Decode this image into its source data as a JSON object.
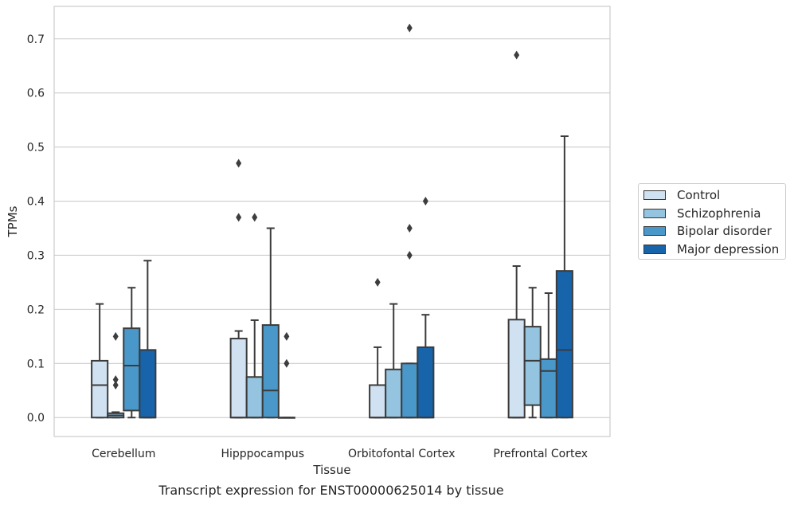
{
  "chart_data": {
    "type": "box",
    "xlabel": "Tissue",
    "ylabel": "TPMs",
    "caption": "Transcript expression for ENST00000625014 by tissue",
    "ylim": [
      -0.035,
      0.76
    ],
    "yticks": [
      0.0,
      0.1,
      0.2,
      0.3,
      0.4,
      0.5,
      0.6,
      0.7
    ],
    "ytick_labels": [
      "0.0",
      "0.1",
      "0.2",
      "0.3",
      "0.4",
      "0.5",
      "0.6",
      "0.7"
    ],
    "grid": "horizontal",
    "legend_position": "right",
    "categories": [
      "Cerebellum",
      "Hipppocampus",
      "Orbitofontal Cortex",
      "Prefrontal Cortex"
    ],
    "series": [
      {
        "name": "Control",
        "color": "#d0e1f2",
        "boxes": [
          {
            "whislo": 0.0,
            "q1": 0.0,
            "med": 0.06,
            "q3": 0.105,
            "whishi": 0.21,
            "fliers": []
          },
          {
            "whislo": 0.0,
            "q1": 0.0,
            "med": 0.0,
            "q3": 0.146,
            "whishi": 0.16,
            "fliers": [
              0.37,
              0.47
            ]
          },
          {
            "whislo": 0.0,
            "q1": 0.0,
            "med": 0.0,
            "q3": 0.06,
            "whishi": 0.13,
            "fliers": [
              0.25
            ]
          },
          {
            "whislo": 0.0,
            "q1": 0.0,
            "med": 0.0,
            "q3": 0.181,
            "whishi": 0.28,
            "fliers": [
              0.67
            ]
          }
        ]
      },
      {
        "name": "Schizophrenia",
        "color": "#94c4df",
        "boxes": [
          {
            "whislo": 0.0,
            "q1": 0.0,
            "med": 0.004,
            "q3": 0.008,
            "whishi": 0.01,
            "fliers": [
              0.06,
              0.07,
              0.15
            ]
          },
          {
            "whislo": 0.0,
            "q1": 0.0,
            "med": 0.0,
            "q3": 0.075,
            "whishi": 0.18,
            "fliers": [
              0.37
            ]
          },
          {
            "whislo": 0.0,
            "q1": 0.0,
            "med": 0.0,
            "q3": 0.089,
            "whishi": 0.21,
            "fliers": []
          },
          {
            "whislo": 0.0,
            "q1": 0.023,
            "med": 0.105,
            "q3": 0.168,
            "whishi": 0.24,
            "fliers": []
          }
        ]
      },
      {
        "name": "Bipolar disorder",
        "color": "#4a98c9",
        "boxes": [
          {
            "whislo": 0.0,
            "q1": 0.013,
            "med": 0.096,
            "q3": 0.165,
            "whishi": 0.24,
            "fliers": []
          },
          {
            "whislo": 0.0,
            "q1": 0.0,
            "med": 0.05,
            "q3": 0.171,
            "whishi": 0.35,
            "fliers": []
          },
          {
            "whislo": 0.0,
            "q1": 0.0,
            "med": 0.0,
            "q3": 0.1,
            "whishi": 0.1,
            "fliers": [
              0.3,
              0.35,
              0.72
            ]
          },
          {
            "whislo": 0.0,
            "q1": 0.0,
            "med": 0.086,
            "q3": 0.108,
            "whishi": 0.23,
            "fliers": []
          }
        ]
      },
      {
        "name": "Major depression",
        "color": "#1764ab",
        "boxes": [
          {
            "whislo": 0.0,
            "q1": 0.0,
            "med": 0.0,
            "q3": 0.125,
            "whishi": 0.29,
            "fliers": []
          },
          {
            "whislo": 0.0,
            "q1": 0.0,
            "med": 0.0,
            "q3": 0.0,
            "whishi": 0.0,
            "fliers": [
              0.1,
              0.15
            ]
          },
          {
            "whislo": 0.0,
            "q1": 0.0,
            "med": 0.0,
            "q3": 0.13,
            "whishi": 0.19,
            "fliers": [
              0.4
            ]
          },
          {
            "whislo": 0.0,
            "q1": 0.0,
            "med": 0.125,
            "q3": 0.271,
            "whishi": 0.52,
            "fliers": []
          }
        ]
      }
    ]
  }
}
